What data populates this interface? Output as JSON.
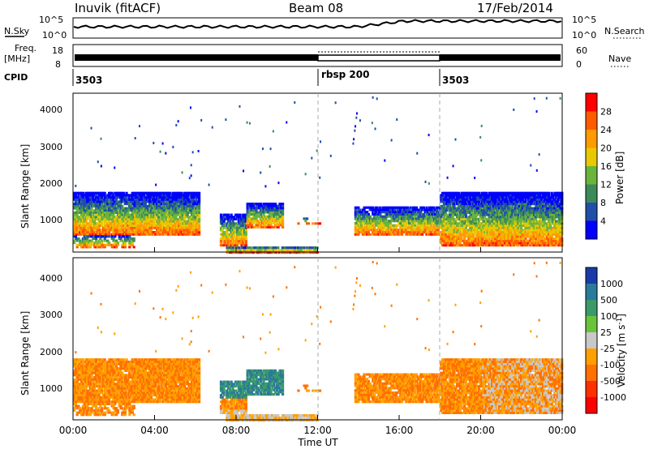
{
  "header": {
    "station": "Inuvik (fitACF)",
    "beam": "Beam 08",
    "date": "17/Feb/2014"
  },
  "noise_panel": {
    "left_label": "N.Sky",
    "right_label": "N.Search",
    "tick_top": "10^5",
    "tick_bottom": "10^0"
  },
  "freq_panel": {
    "left_label_1": "Freq.",
    "left_label_2": "[MHz]",
    "right_label": "Nave",
    "left_ticks": [
      "18",
      "8"
    ],
    "right_ticks": [
      "60",
      "0"
    ]
  },
  "cpid_panel": {
    "label": "CPID",
    "segments": [
      "3503",
      "rbsp 200",
      "3503"
    ]
  },
  "colors": {
    "power": [
      "#0000ff",
      "#1f4fa8",
      "#3c8a5a",
      "#6bb43c",
      "#e8c800",
      "#ff9a00",
      "#ff5a00",
      "#ff0000"
    ],
    "velocity": [
      "#1a3aa8",
      "#2a7a9a",
      "#3a9a6a",
      "#6ac43a",
      "#c8c8c8",
      "#ffa000",
      "#ff7000",
      "#ff3000",
      "#ff0000"
    ]
  },
  "chart_data": [
    {
      "type": "heatmap",
      "title": "Power",
      "xlabel": "",
      "ylabel": "Slant Range [km]",
      "xlim": [
        "00:00",
        "24:00"
      ],
      "ylim": [
        180,
        4560
      ],
      "yticks": [
        "1000",
        "2000",
        "3000",
        "4000"
      ],
      "colorbar": {
        "label": "Power [dB]",
        "ticks": [
          "4",
          "8",
          "12",
          "16",
          "20",
          "24",
          "28"
        ],
        "range": [
          0,
          32
        ]
      }
    },
    {
      "type": "heatmap",
      "title": "Velocity",
      "xlabel": "Time UT",
      "ylabel": "Slant Range [km]",
      "xlim": [
        "00:00",
        "24:00"
      ],
      "xticks": [
        "00:00",
        "04:00",
        "08:00",
        "12:00",
        "16:00",
        "20:00",
        "00:00"
      ],
      "ylim": [
        180,
        4560
      ],
      "yticks": [
        "1000",
        "2000",
        "3000",
        "4000"
      ],
      "colorbar": {
        "label": "Velocity [m s-1]",
        "ticks": [
          "1000",
          "500",
          "100",
          "25",
          "-25",
          "-100",
          "-500",
          "-1000"
        ]
      }
    }
  ]
}
